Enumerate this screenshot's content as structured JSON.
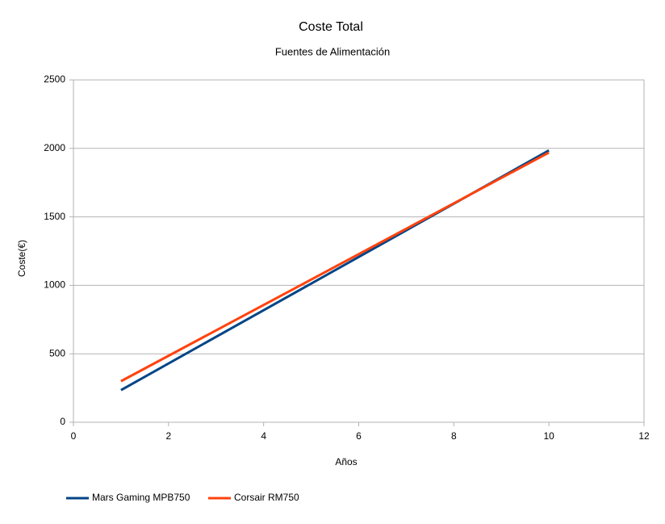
{
  "chart_data": {
    "type": "line",
    "title": "Coste Total",
    "subtitle": "Fuentes de Alimentación",
    "x_label": "Años",
    "y_label": "Coste(€)",
    "x": [
      1,
      10
    ],
    "series": [
      {
        "name": "Mars Gaming MPB750",
        "color": "#004586",
        "values": [
          235,
          1985
        ]
      },
      {
        "name": "Corsair RM750",
        "color": "#ff420e",
        "values": [
          300,
          1970
        ]
      }
    ],
    "xlim": [
      0,
      12
    ],
    "xticks": [
      0,
      2,
      4,
      6,
      8,
      10,
      12
    ],
    "ylim": [
      0,
      2500
    ],
    "yticks": [
      0,
      500,
      1000,
      1500,
      2000,
      2500
    ],
    "grid": true,
    "legend": "bottom"
  }
}
